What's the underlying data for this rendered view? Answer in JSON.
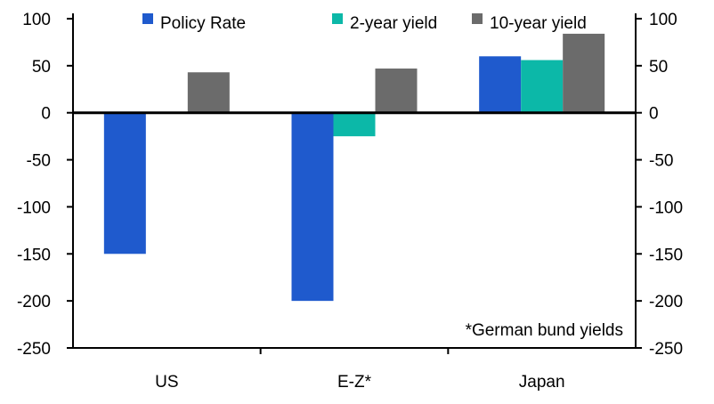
{
  "chart_data": {
    "type": "bar",
    "categories": [
      "US",
      "E-Z*",
      "Japan"
    ],
    "series": [
      {
        "name": "Policy Rate",
        "color": "#1f5acd",
        "values": [
          -150,
          -200,
          60
        ]
      },
      {
        "name": "2-year yield",
        "color": "#0cb8a8",
        "values": [
          1,
          -25,
          56
        ]
      },
      {
        "name": "10-year yield",
        "color": "#6b6b6b",
        "values": [
          43,
          47,
          84
        ]
      }
    ],
    "ylim": [
      -250,
      100
    ],
    "yticks": [
      100,
      50,
      0,
      -50,
      -100,
      -150,
      -200,
      -250
    ],
    "axes": "left-and-right",
    "legend": "top",
    "annotation": "*German bund yields",
    "title": "",
    "xlabel": "",
    "ylabel": ""
  }
}
